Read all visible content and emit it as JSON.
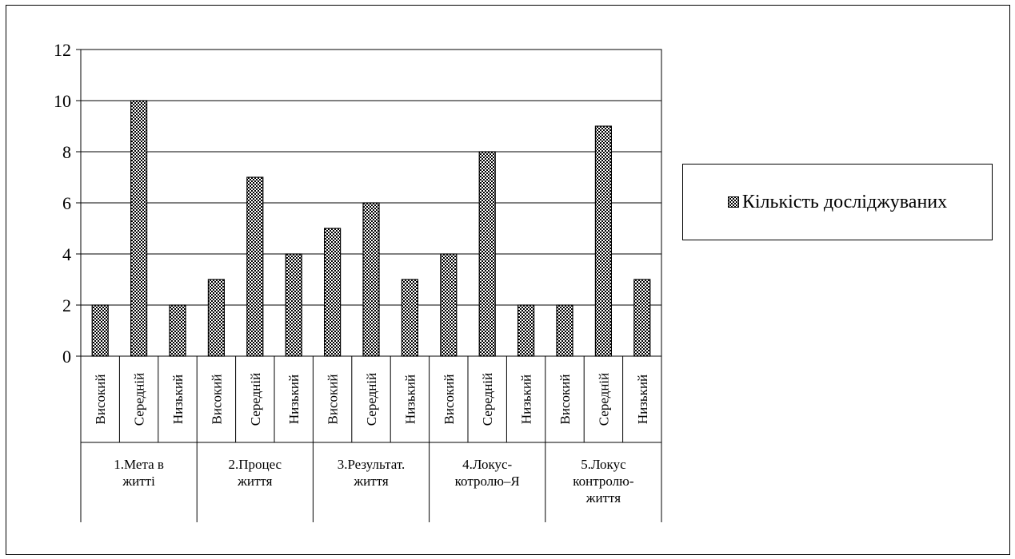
{
  "chart_data": {
    "type": "bar",
    "groups": [
      {
        "label": "1.Мета в житті",
        "lines": [
          "1.Мета в",
          "житті"
        ]
      },
      {
        "label": "2.Процес життя",
        "lines": [
          "2.Процес",
          "життя"
        ]
      },
      {
        "label": "3.Результат. життя",
        "lines": [
          "3.Результат.",
          "життя"
        ]
      },
      {
        "label": "4.Локус-котролю–Я",
        "lines": [
          "4.Локус-",
          "котролю–Я"
        ]
      },
      {
        "label": "5.Локус контролю-життя",
        "lines": [
          "5.Локус",
          "контролю-",
          "життя"
        ]
      }
    ],
    "categories": [
      "Високий",
      "Середній",
      "Низький",
      "Високий",
      "Середній",
      "Низький",
      "Високий",
      "Середній",
      "Низький",
      "Високий",
      "Середній",
      "Низький",
      "Високий",
      "Середній",
      "Низький"
    ],
    "series": [
      {
        "name": "Кількість досліджуваних",
        "values": [
          2,
          10,
          2,
          3,
          7,
          4,
          5,
          6,
          3,
          4,
          8,
          2,
          2,
          9,
          3
        ]
      }
    ],
    "ylim": [
      0,
      12
    ],
    "yticks": [
      0,
      2,
      4,
      6,
      8,
      10,
      12
    ],
    "grid": true,
    "legend_position": "right",
    "bar_color": "#000000",
    "bar_fill": "#ffffff"
  }
}
